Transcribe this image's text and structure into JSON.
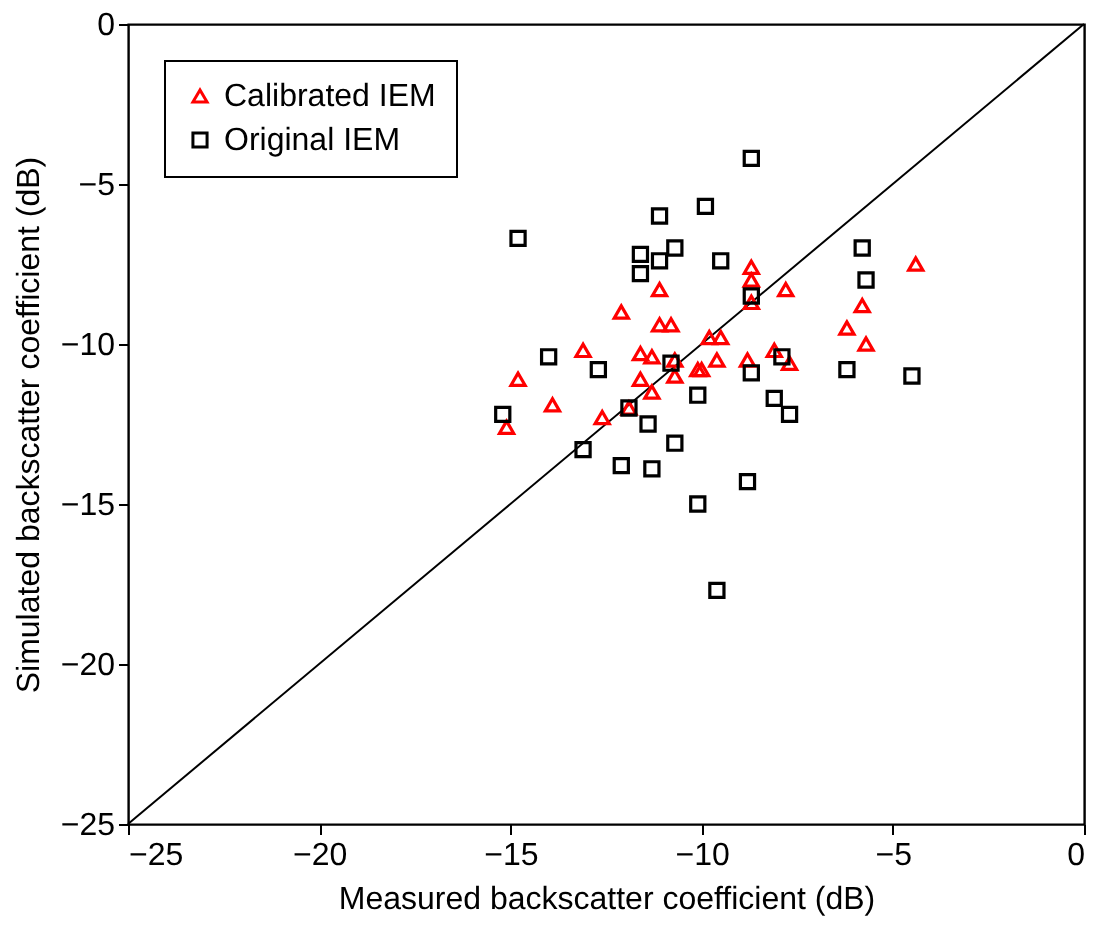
{
  "chart_data": {
    "type": "scatter",
    "xlabel": "Measured backscatter coefficient (dB)",
    "ylabel": "Simulated backscatter coefficient (dB)",
    "xlim": [
      -25,
      0
    ],
    "ylim": [
      -25,
      0
    ],
    "xticks": [
      -25,
      -20,
      -15,
      -10,
      -5,
      0
    ],
    "yticks": [
      -25,
      -20,
      -15,
      -10,
      -5,
      0
    ],
    "legend": "top left",
    "series": [
      {
        "name": "Calibrated IEM",
        "color": "#ff0000",
        "marker": "triangle",
        "x": [
          -15.1,
          -14.8,
          -13.9,
          -13.1,
          -12.6,
          -12.1,
          -11.9,
          -11.6,
          -11.6,
          -11.3,
          -11.3,
          -11.1,
          -11.1,
          -10.8,
          -10.7,
          -10.7,
          -10.1,
          -10.0,
          -9.8,
          -9.5,
          -9.6,
          -8.8,
          -8.7,
          -8.7,
          -8.7,
          -7.8,
          -8.1,
          -7.7,
          -6.2,
          -5.8,
          -5.7,
          -4.4
        ],
        "values": [
          -12.6,
          -11.1,
          -11.9,
          -10.2,
          -12.3,
          -9.0,
          -12.0,
          -11.1,
          -10.3,
          -10.4,
          -11.5,
          -8.3,
          -9.4,
          -9.4,
          -10.5,
          -11.0,
          -10.8,
          -10.8,
          -9.8,
          -9.8,
          -10.5,
          -10.5,
          -7.6,
          -8.0,
          -8.7,
          -8.3,
          -10.2,
          -10.6,
          -9.5,
          -8.8,
          -10.0,
          -7.5
        ]
      },
      {
        "name": "Original IEM",
        "color": "#000000",
        "marker": "square",
        "x": [
          -15.2,
          -14.8,
          -14.0,
          -13.1,
          -12.7,
          -12.1,
          -11.9,
          -11.6,
          -11.6,
          -11.4,
          -11.3,
          -11.1,
          -11.1,
          -10.8,
          -10.7,
          -10.7,
          -10.1,
          -10.1,
          -9.9,
          -9.6,
          -9.5,
          -8.8,
          -8.7,
          -8.7,
          -8.7,
          -8.1,
          -7.9,
          -7.7,
          -6.2,
          -5.8,
          -5.7,
          -4.5
        ],
        "values": [
          -12.2,
          -6.7,
          -10.4,
          -13.3,
          -10.8,
          -13.8,
          -12.0,
          -7.2,
          -7.8,
          -12.5,
          -13.9,
          -7.4,
          -6.0,
          -10.6,
          -7.0,
          -13.1,
          -15.0,
          -11.6,
          -5.7,
          -17.7,
          -7.4,
          -14.3,
          -10.9,
          -4.2,
          -8.5,
          -11.7,
          -10.4,
          -12.2,
          -10.8,
          -7.0,
          -8.0,
          -11.0
        ]
      },
      {
        "type": "line",
        "color": "#000000",
        "x": [
          -25,
          0
        ],
        "values": [
          -25,
          0
        ]
      }
    ]
  }
}
